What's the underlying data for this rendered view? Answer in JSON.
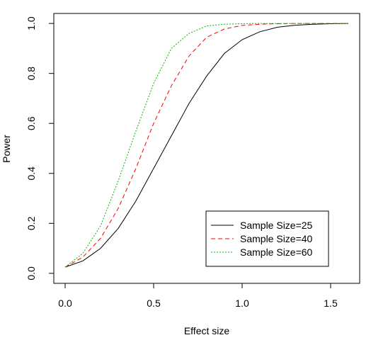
{
  "chart_data": {
    "type": "line",
    "title": "",
    "xlabel": "Effect size",
    "ylabel": "Power",
    "xlim": [
      -0.064,
      1.664
    ],
    "ylim": [
      -0.04,
      1.04
    ],
    "x_ticks": [
      0.0,
      0.5,
      1.0,
      1.5
    ],
    "x_tick_labels": [
      "0.0",
      "0.5",
      "1.0",
      "1.5"
    ],
    "y_ticks": [
      0.0,
      0.2,
      0.4,
      0.6,
      0.8,
      1.0
    ],
    "y_tick_labels": [
      "0.0",
      "0.2",
      "0.4",
      "0.6",
      "0.8",
      "1.0"
    ],
    "grid": false,
    "legend_position": "bottom-right",
    "x": [
      0.0,
      0.1,
      0.2,
      0.3,
      0.4,
      0.5,
      0.6,
      0.7,
      0.8,
      0.9,
      1.0,
      1.1,
      1.2,
      1.3,
      1.4,
      1.5,
      1.6
    ],
    "series": [
      {
        "name": "Sample Size=25",
        "color": "#000000",
        "dash": "solid",
        "values": [
          0.025,
          0.05,
          0.1,
          0.18,
          0.29,
          0.42,
          0.55,
          0.68,
          0.79,
          0.88,
          0.935,
          0.967,
          0.985,
          0.993,
          0.997,
          0.999,
          1.0
        ]
      },
      {
        "name": "Sample Size=40",
        "color": "#ff0000",
        "dash": "dashed",
        "values": [
          0.025,
          0.065,
          0.14,
          0.26,
          0.42,
          0.6,
          0.75,
          0.87,
          0.945,
          0.978,
          0.992,
          0.997,
          0.999,
          1.0,
          1.0,
          1.0,
          1.0
        ]
      },
      {
        "name": "Sample Size=60",
        "color": "#00bb00",
        "dash": "dotted",
        "values": [
          0.025,
          0.08,
          0.19,
          0.37,
          0.57,
          0.76,
          0.9,
          0.96,
          0.99,
          0.997,
          0.999,
          1.0,
          1.0,
          1.0,
          1.0,
          1.0,
          1.0
        ]
      }
    ]
  }
}
